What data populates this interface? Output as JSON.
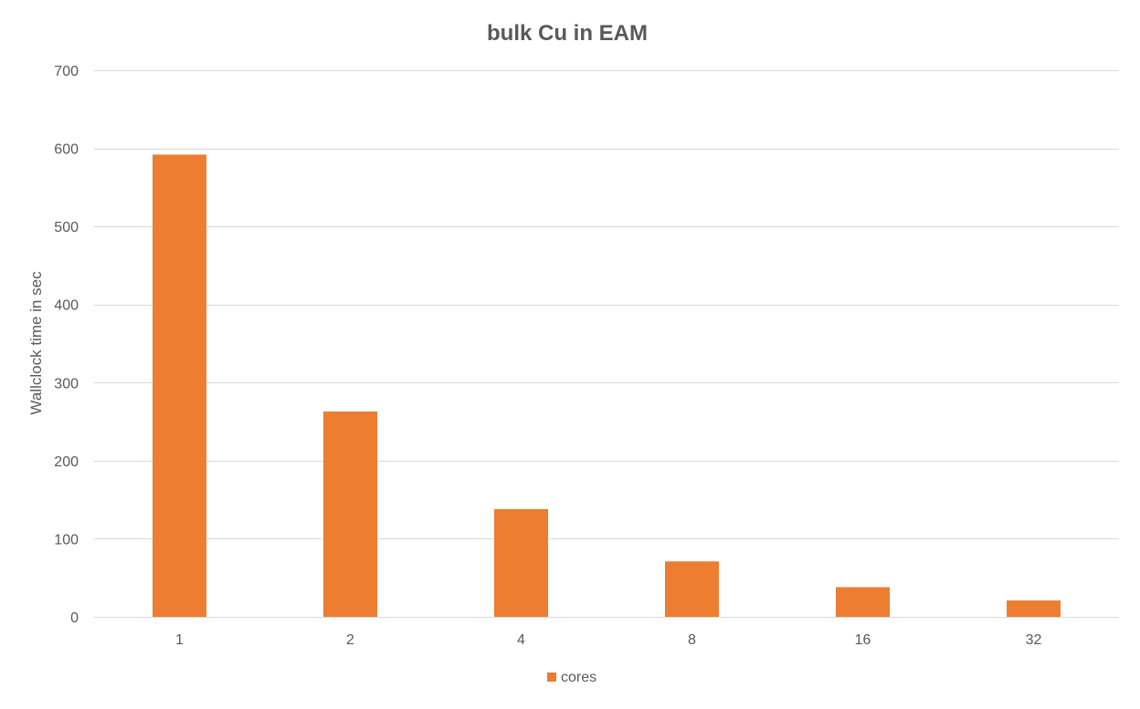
{
  "chart_data": {
    "type": "bar",
    "title": "bulk Cu in EAM",
    "xlabel": "",
    "ylabel": "Wallclock time in sec",
    "categories": [
      "1",
      "2",
      "4",
      "8",
      "16",
      "32"
    ],
    "series": [
      {
        "name": "cores",
        "values": [
          592,
          263,
          138,
          71,
          38,
          21
        ],
        "color": "#ED7D31"
      }
    ],
    "ylim": [
      0,
      700
    ],
    "yticks": [
      0,
      100,
      200,
      300,
      400,
      500,
      600,
      700
    ],
    "ytick_labels": [
      "0",
      "100",
      "200",
      "300",
      "400",
      "500",
      "600",
      "700"
    ],
    "grid": true,
    "legend_position": "bottom",
    "colors": {
      "bar": "#ED7D31",
      "grid": "#D9D9D9",
      "text": "#595959"
    }
  }
}
